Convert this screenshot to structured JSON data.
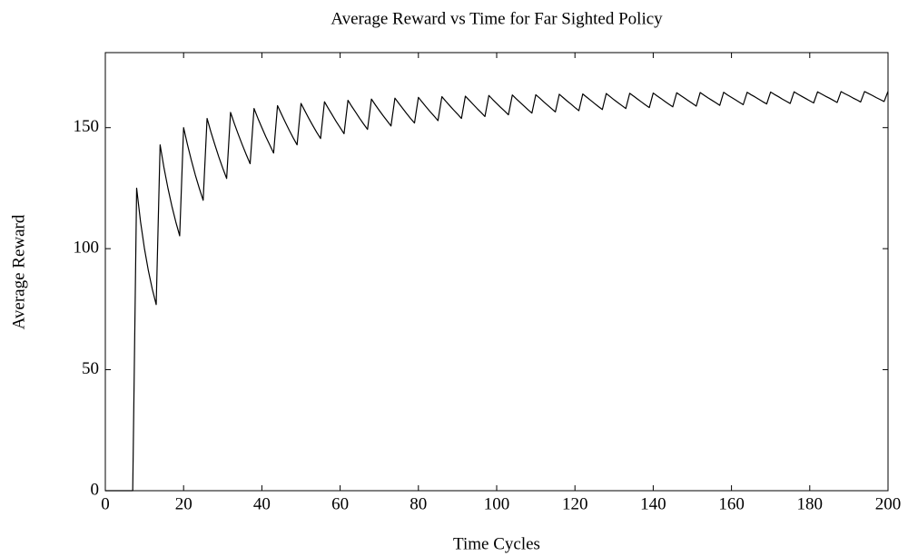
{
  "chart_data": {
    "type": "line",
    "title": "Average Reward vs Time for Far Sighted Policy",
    "xlabel": "Time Cycles",
    "ylabel": "Average Reward",
    "xlim": [
      0,
      200
    ],
    "ylim": [
      0,
      181
    ],
    "xticks": [
      0,
      20,
      40,
      60,
      80,
      100,
      120,
      140,
      160,
      180,
      200
    ],
    "yticks": [
      0,
      50,
      100,
      150
    ],
    "grid": false,
    "x": [
      0,
      1,
      2,
      3,
      4,
      5,
      6,
      7,
      8,
      9,
      10,
      11,
      12,
      13,
      14,
      15,
      16,
      17,
      18,
      19,
      20,
      21,
      22,
      23,
      24,
      25,
      26,
      27,
      28,
      29,
      30,
      31,
      32,
      33,
      34,
      35,
      36,
      37,
      38,
      39,
      40,
      41,
      42,
      43,
      44,
      45,
      46,
      47,
      48,
      49,
      50,
      51,
      52,
      53,
      54,
      55,
      56,
      57,
      58,
      59,
      60,
      61,
      62,
      63,
      64,
      65,
      66,
      67,
      68,
      69,
      70,
      71,
      72,
      73,
      74,
      75,
      76,
      77,
      78,
      79,
      80,
      81,
      82,
      83,
      84,
      85,
      86,
      87,
      88,
      89,
      90,
      91,
      92,
      93,
      94,
      95,
      96,
      97,
      98,
      99,
      100,
      101,
      102,
      103,
      104,
      105,
      106,
      107,
      108,
      109,
      110,
      111,
      112,
      113,
      114,
      115,
      116,
      117,
      118,
      119,
      120,
      121,
      122,
      123,
      124,
      125,
      126,
      127,
      128,
      129,
      130,
      131,
      132,
      133,
      134,
      135,
      136,
      137,
      138,
      139,
      140,
      141,
      142,
      143,
      144,
      145,
      146,
      147,
      148,
      149,
      150,
      151,
      152,
      153,
      154,
      155,
      156,
      157,
      158,
      159,
      160,
      161,
      162,
      163,
      164,
      165,
      166,
      167,
      168,
      169,
      170,
      171,
      172,
      173,
      174,
      175,
      176,
      177,
      178,
      179,
      180,
      181,
      182,
      183,
      184,
      185,
      186,
      187,
      188,
      189,
      190,
      191,
      192,
      193,
      194,
      195,
      196,
      197,
      198,
      199,
      200
    ],
    "series": [
      {
        "color": "#000000",
        "values": [
          0,
          0,
          0,
          0,
          0,
          0,
          0,
          0,
          125,
          111.1,
          100,
          90.9,
          83.3,
          76.9,
          142.9,
          133.3,
          125,
          117.6,
          111.1,
          105.3,
          150,
          142.9,
          136.4,
          130.4,
          125,
          120,
          153.8,
          148.1,
          142.9,
          137.9,
          133.3,
          129,
          156.3,
          151.5,
          147.1,
          142.9,
          138.9,
          135.1,
          157.9,
          153.8,
          150,
          146.3,
          142.9,
          139.5,
          159.1,
          155.6,
          152.2,
          148.9,
          145.8,
          142.9,
          160,
          156.9,
          153.8,
          150.9,
          148.1,
          145.5,
          160.7,
          157.9,
          155.2,
          152.5,
          150,
          147.5,
          161.3,
          158.7,
          156.3,
          153.8,
          151.5,
          149.3,
          161.8,
          159.4,
          157.1,
          154.9,
          152.8,
          150.7,
          162.2,
          160,
          157.9,
          155.8,
          153.8,
          151.9,
          162.5,
          160.5,
          158.5,
          156.6,
          154.8,
          152.9,
          162.8,
          160.9,
          159.1,
          157.3,
          155.6,
          153.8,
          163,
          161.3,
          159.6,
          157.9,
          156.3,
          154.6,
          163.3,
          161.6,
          160,
          158.4,
          156.9,
          155.3,
          163.5,
          161.9,
          160.4,
          158.9,
          157.4,
          156,
          163.6,
          162.2,
          160.7,
          159.3,
          157.9,
          156.5,
          163.8,
          162.4,
          161,
          159.7,
          158.3,
          157,
          163.9,
          162.6,
          161.3,
          160,
          158.7,
          157.5,
          164.1,
          162.8,
          161.5,
          160.3,
          159.1,
          157.9,
          164.2,
          163,
          161.8,
          160.6,
          159.4,
          158.3,
          164.3,
          163.1,
          162,
          160.8,
          159.7,
          158.6,
          164.4,
          163.3,
          162.2,
          161.1,
          160,
          158.9,
          164.5,
          163.4,
          162.3,
          161.3,
          160.3,
          159.2,
          164.6,
          163.5,
          162.5,
          161.5,
          160.5,
          159.5,
          164.6,
          163.6,
          162.7,
          161.7,
          160.7,
          159.8,
          164.7,
          163.7,
          162.8,
          161.8,
          160.9,
          160,
          164.8,
          163.8,
          162.9,
          162,
          161.1,
          160.2,
          164.8,
          163.9,
          163,
          162.2,
          161.3,
          160.4,
          164.9,
          164,
          163.2,
          162.3,
          161.5,
          160.6,
          164.9,
          164.1,
          163.3,
          162.4,
          161.6,
          160.8,
          165
        ]
      }
    ]
  }
}
